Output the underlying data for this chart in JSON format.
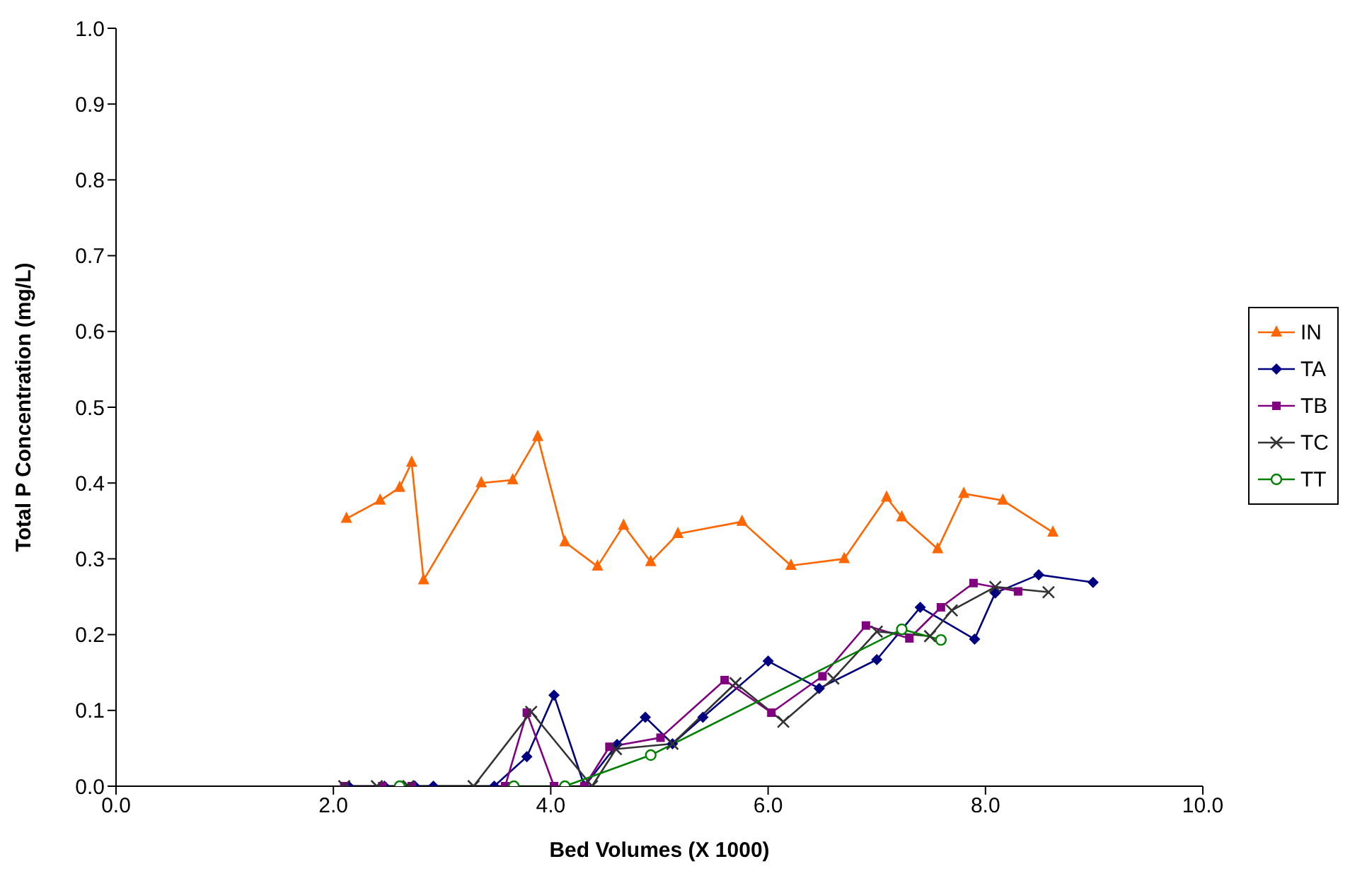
{
  "chart_data": {
    "type": "line",
    "xlabel": "Bed Volumes (X 1000)",
    "ylabel": "Total P Concentration (mg/L)",
    "xlim": [
      0,
      10
    ],
    "xticks": [
      {
        "value": 0,
        "label": "0.0"
      },
      {
        "value": 2,
        "label": "2.0"
      },
      {
        "value": 4,
        "label": "4.0"
      },
      {
        "value": 6,
        "label": "6.0"
      },
      {
        "value": 8,
        "label": "8.0"
      },
      {
        "value": 10,
        "label": "10.0"
      }
    ],
    "ylim": [
      0,
      1
    ],
    "yticks": [
      {
        "value": 0,
        "label": "0.0"
      },
      {
        "value": 0.1,
        "label": "0.1"
      },
      {
        "value": 0.2,
        "label": "0.2"
      },
      {
        "value": 0.3,
        "label": "0.3"
      },
      {
        "value": 0.4,
        "label": "0.4"
      },
      {
        "value": 0.5,
        "label": "0.5"
      },
      {
        "value": 0.6,
        "label": "0.6"
      },
      {
        "value": 0.7,
        "label": "0.7"
      },
      {
        "value": 0.8,
        "label": "0.8"
      },
      {
        "value": 0.9,
        "label": "0.9"
      },
      {
        "value": 1,
        "label": "1.0"
      }
    ],
    "grid": false,
    "legend": "right",
    "line_style": "solid",
    "series": [
      {
        "name": "IN",
        "color": "#ff6600",
        "marker": "triangle",
        "x": [
          2.12,
          2.43,
          2.61,
          2.72,
          2.83,
          3.36,
          3.65,
          3.88,
          4.13,
          4.43,
          4.67,
          4.92,
          5.17,
          5.76,
          6.21,
          6.7,
          7.09,
          7.23,
          7.56,
          7.8,
          8.16,
          8.62
        ],
        "values": [
          0.353,
          0.377,
          0.394,
          0.427,
          0.272,
          0.4,
          0.404,
          0.461,
          0.322,
          0.29,
          0.344,
          0.296,
          0.333,
          0.349,
          0.291,
          0.3,
          0.381,
          0.355,
          0.313,
          0.386,
          0.377,
          0.335
        ]
      },
      {
        "name": "TA",
        "color": "#000080",
        "marker": "diamond",
        "x": [
          2.14,
          2.47,
          2.75,
          2.92,
          3.48,
          3.78,
          4.03,
          4.31,
          4.61,
          4.87,
          5.12,
          5.4,
          6.0,
          6.47,
          7.0,
          7.4,
          7.9,
          8.09,
          8.49,
          8.99
        ],
        "values": [
          0,
          0,
          0,
          0,
          0,
          0.039,
          0.12,
          0,
          0.055,
          0.091,
          0.056,
          0.091,
          0.165,
          0.129,
          0.167,
          0.236,
          0.194,
          0.255,
          0.279,
          0.269
        ]
      },
      {
        "name": "TB",
        "color": "#800080",
        "marker": "square",
        "x": [
          2.1,
          2.45,
          2.72,
          3.58,
          3.78,
          4.03,
          4.31,
          4.54,
          5.01,
          5.6,
          6.03,
          6.5,
          6.9,
          7.3,
          7.59,
          7.89,
          8.3
        ],
        "values": [
          0,
          0,
          0,
          0,
          0.097,
          0,
          0,
          0.052,
          0.064,
          0.14,
          0.097,
          0.145,
          0.212,
          0.195,
          0.236,
          0.268,
          0.257
        ]
      },
      {
        "name": "TC",
        "color": "#333333",
        "marker": "cross",
        "x": [
          2.1,
          2.4,
          2.69,
          3.29,
          3.82,
          4.38,
          4.6,
          5.12,
          5.7,
          6.14,
          6.6,
          7.0,
          7.49,
          7.69,
          8.09,
          8.58
        ],
        "values": [
          0,
          0,
          0,
          0,
          0.098,
          0,
          0.049,
          0.056,
          0.136,
          0.085,
          0.142,
          0.204,
          0.198,
          0.232,
          0.263,
          0.256
        ]
      },
      {
        "name": "TT",
        "color": "#008000",
        "marker": "circle",
        "x": [
          2.61,
          3.66,
          4.13,
          4.92,
          7.23,
          7.59
        ],
        "values": [
          0,
          0,
          0,
          0.041,
          0.207,
          0.193
        ]
      }
    ]
  }
}
